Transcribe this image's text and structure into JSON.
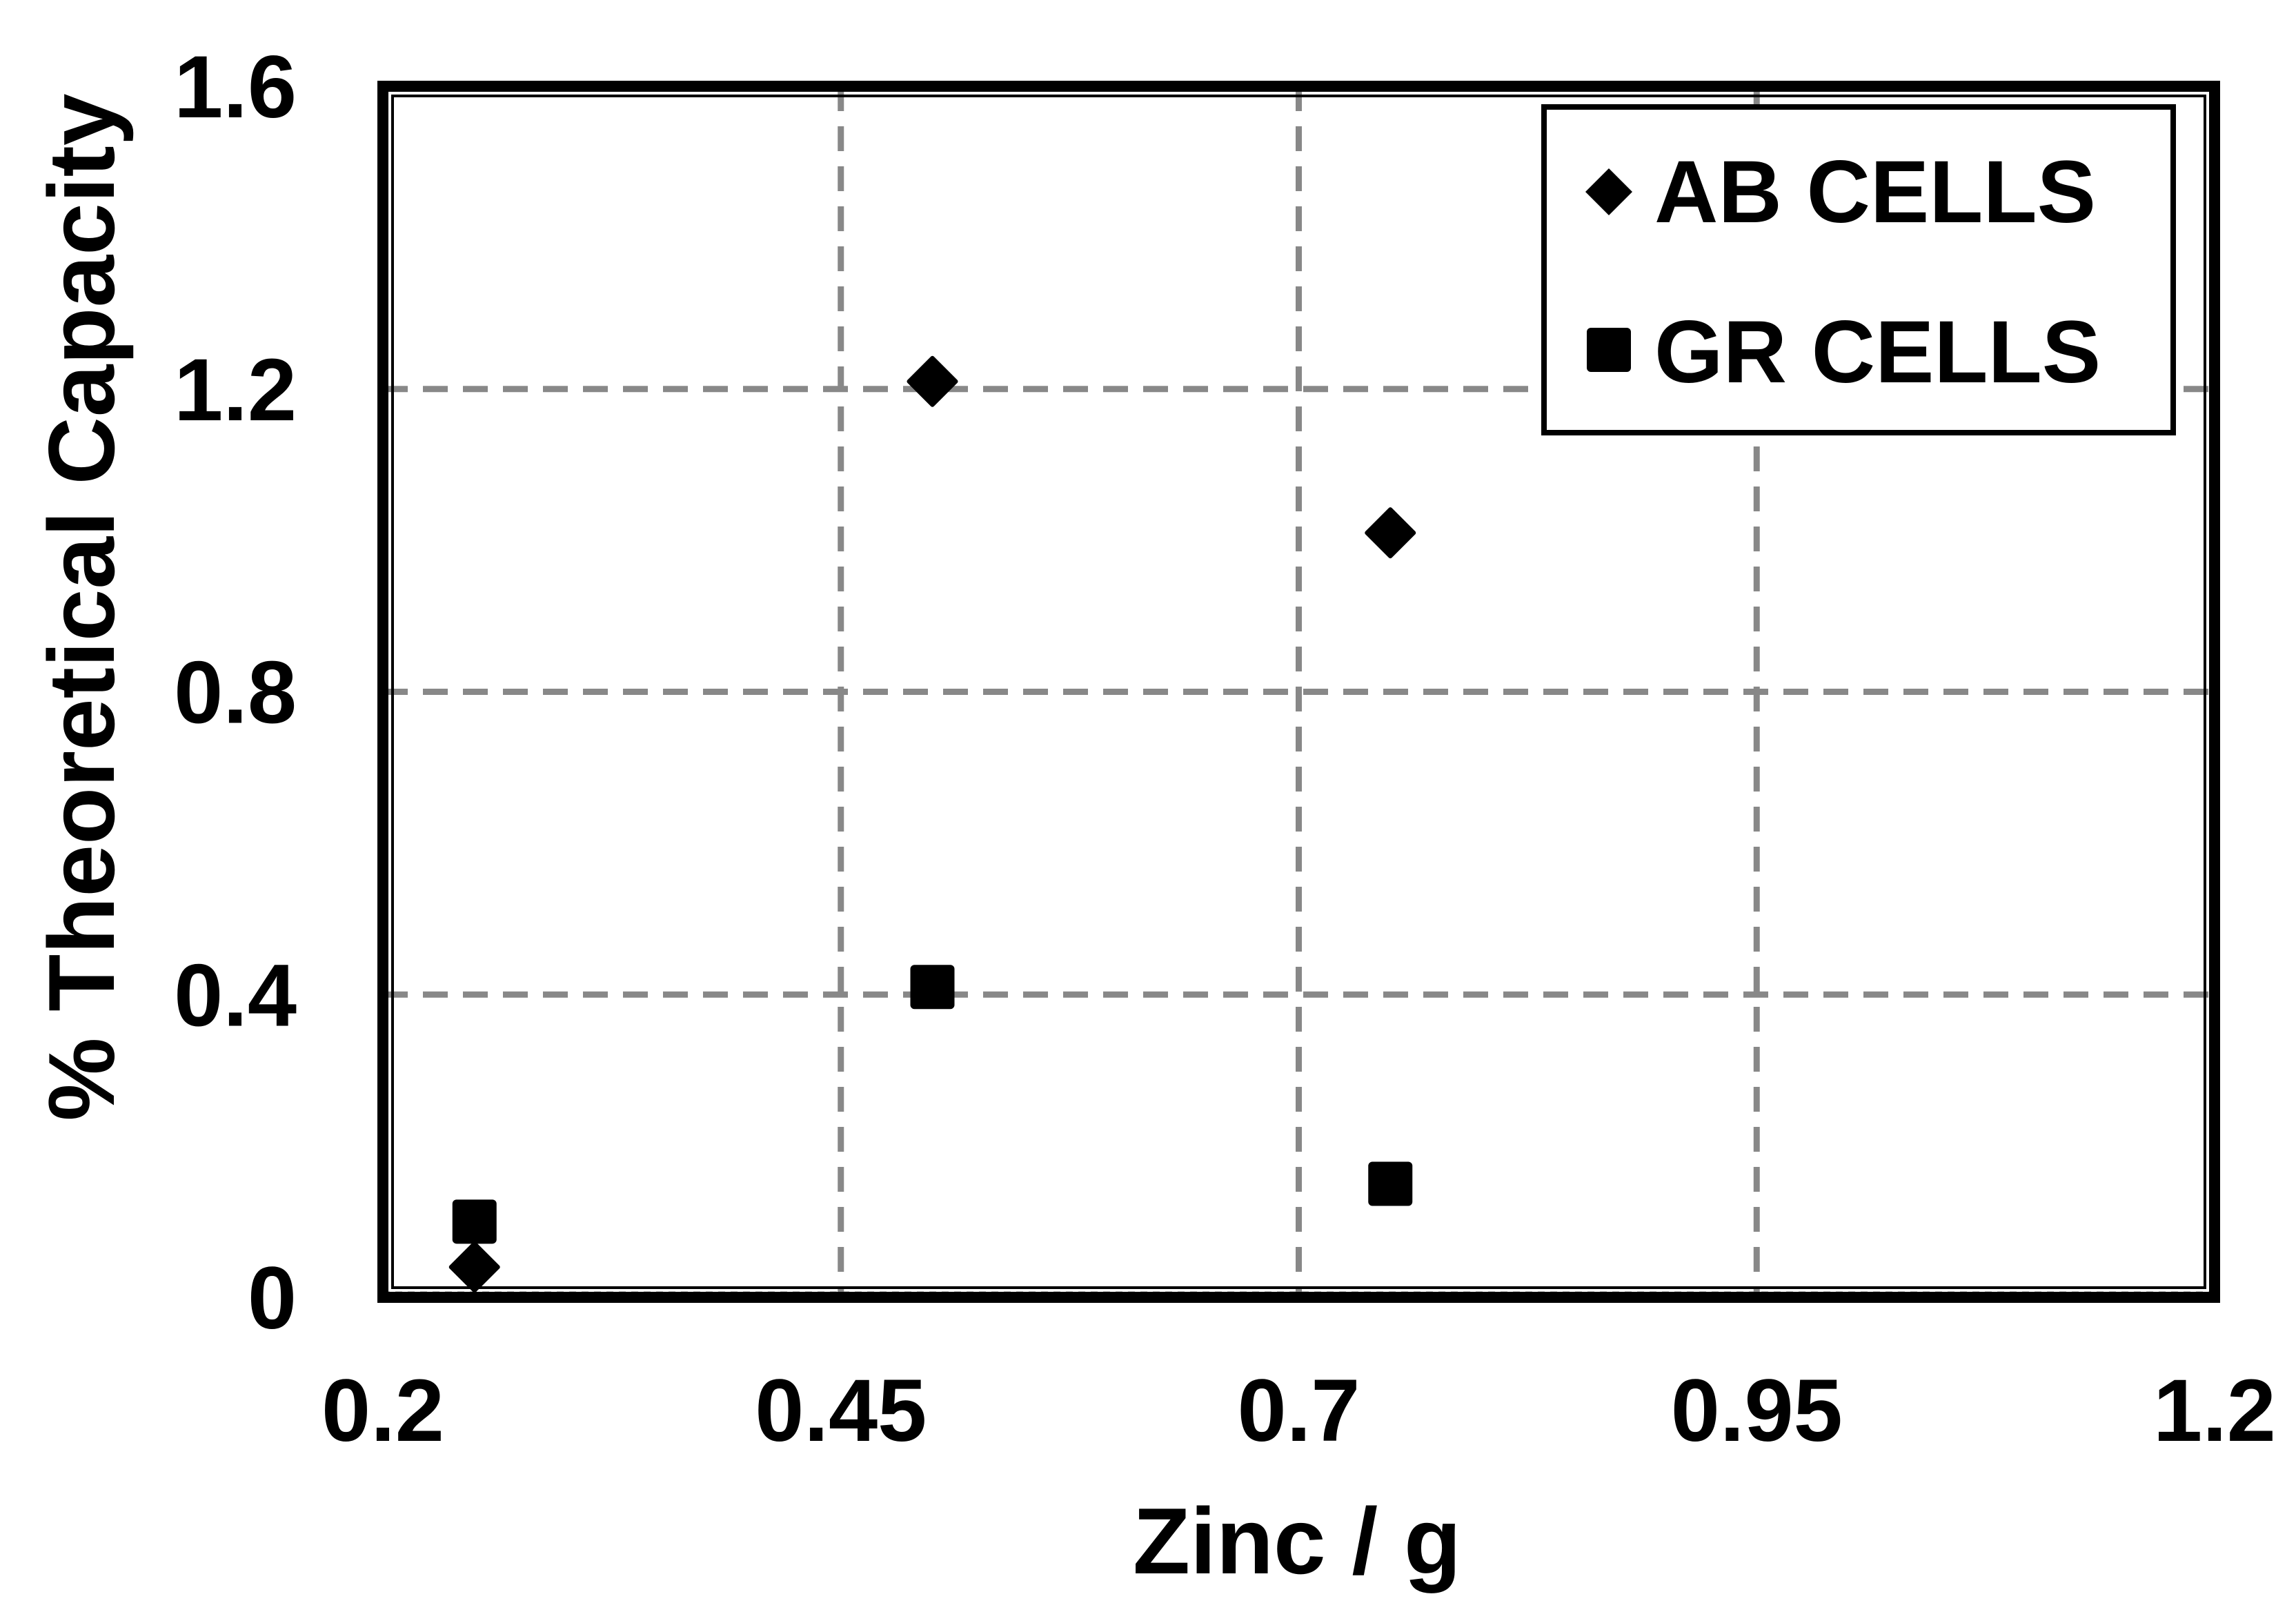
{
  "chart_data": {
    "type": "scatter",
    "title": "",
    "xlabel": "Zinc / g",
    "ylabel": "% Theoretical Capacity",
    "xlim": [
      0.2,
      1.2
    ],
    "ylim": [
      0,
      1.6
    ],
    "xticks": [
      0.2,
      0.45,
      0.7,
      0.95,
      1.2
    ],
    "xtick_labels": [
      "0.2",
      "0.45",
      "0.7",
      "0.95",
      "1.2"
    ],
    "yticks": [
      0,
      0.4,
      0.8,
      1.2,
      1.6
    ],
    "ytick_labels": [
      "0",
      "0.4",
      "0.8",
      "1.2",
      "1.6"
    ],
    "grid": true,
    "legend_position": "top-right",
    "series": [
      {
        "name": "AB CELLS",
        "marker": "diamond",
        "color": "#000000",
        "points": [
          {
            "x": 0.25,
            "y": 0.04
          },
          {
            "x": 0.5,
            "y": 1.21
          },
          {
            "x": 0.75,
            "y": 1.01
          }
        ]
      },
      {
        "name": "GR CELLS",
        "marker": "square",
        "color": "#000000",
        "points": [
          {
            "x": 0.25,
            "y": 0.1
          },
          {
            "x": 0.5,
            "y": 0.41
          },
          {
            "x": 0.75,
            "y": 0.15
          }
        ]
      }
    ],
    "colors": {
      "grid": "#888888",
      "frame": "#000000",
      "markers": "#000000"
    }
  }
}
